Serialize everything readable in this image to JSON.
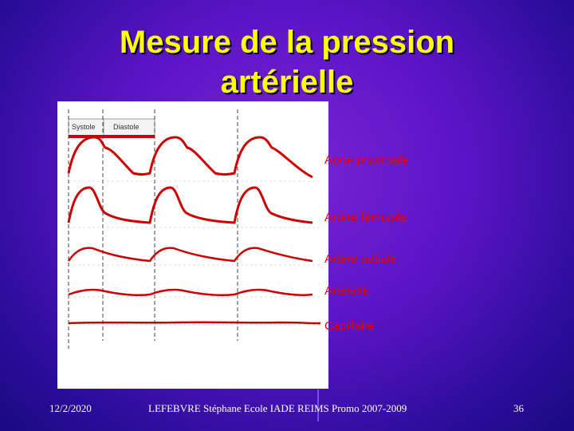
{
  "title_line1": "Mesure de la pression",
  "title_line2": "artérielle",
  "figure": {
    "tab_systole": "Systole",
    "tab_diastole": "Diastole"
  },
  "labels": [
    "Aorte proximale",
    "Artère fémorale",
    "Artère radiale",
    "Artériole",
    "Capillaire"
  ],
  "footer": {
    "date": "12/2/2020",
    "author": "LEFEBVRE Stéphane Ecole IADE REIMS Promo 2007-2009",
    "page": "36"
  },
  "colors": {
    "background": "#5a14c4",
    "title": "#ffff00",
    "trace": "#cc0000",
    "label": "#e00000"
  }
}
